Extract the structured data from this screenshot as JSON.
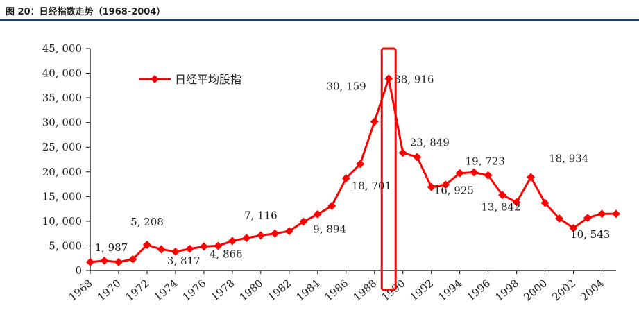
{
  "header": {
    "title": "图 20：日经指数走势（1968-2004）"
  },
  "chart_data": {
    "type": "line",
    "title": "图 20：日经指数走势（1968-2004）",
    "xlabel": "",
    "ylabel": "",
    "ylim": [
      0,
      45000
    ],
    "xlim": [
      1968,
      2005
    ],
    "colors": {
      "series": "#ff0000",
      "axis": "#000000",
      "highlight": "#ff0000"
    },
    "yticks": [
      0,
      5000,
      10000,
      15000,
      20000,
      25000,
      30000,
      35000,
      40000,
      45000
    ],
    "ytick_labels": [
      "0",
      "5, 000",
      "10, 000",
      "15, 000",
      "20, 000",
      "25, 000",
      "30, 000",
      "35, 000",
      "40, 000",
      "45, 000"
    ],
    "xticks": [
      1968,
      1970,
      1972,
      1974,
      1976,
      1978,
      1980,
      1982,
      1984,
      1986,
      1988,
      1990,
      1992,
      1994,
      1996,
      1998,
      2000,
      2002,
      2004
    ],
    "xtick_labels": [
      "1968",
      "1970",
      "1972",
      "1974",
      "1976",
      "1978",
      "1980",
      "1982",
      "1984",
      "1986",
      "1988",
      "1990",
      "1992",
      "1994",
      "1996",
      "1998",
      "2000",
      "2002",
      "2004"
    ],
    "legend": {
      "label": "日经平均股指",
      "position": "top-left"
    },
    "series": [
      {
        "name": "日经平均股指",
        "x": [
          1968,
          1969,
          1970,
          1971,
          1972,
          1973,
          1974,
          1975,
          1976,
          1977,
          1978,
          1979,
          1980,
          1981,
          1982,
          1983,
          1984,
          1985,
          1986,
          1987,
          1988,
          1989,
          1990,
          1991,
          1992,
          1993,
          1994,
          1995,
          1996,
          1997,
          1998,
          1999,
          2000,
          2001,
          2002,
          2003,
          2004,
          2005
        ],
        "values": [
          1700,
          1987,
          1700,
          2300,
          5208,
          4300,
          3817,
          4400,
          4866,
          5000,
          6000,
          6600,
          7116,
          7500,
          8000,
          9894,
          11400,
          13100,
          18701,
          21600,
          30159,
          38916,
          23849,
          23000,
          16925,
          17400,
          19723,
          19900,
          19300,
          15300,
          13842,
          18934,
          13700,
          10543,
          8600,
          10676,
          11500,
          11500
        ]
      }
    ],
    "data_labels": [
      {
        "x": 1969,
        "text": "1, 987"
      },
      {
        "x": 1972,
        "text": "5, 208"
      },
      {
        "x": 1974,
        "text": "3, 817"
      },
      {
        "x": 1976,
        "text": "4, 866"
      },
      {
        "x": 1980,
        "text": "7, 116"
      },
      {
        "x": 1983,
        "text": "9, 894"
      },
      {
        "x": 1988,
        "text": "30, 159"
      },
      {
        "x": 1986,
        "text": "18, 701"
      },
      {
        "x": 1989,
        "text": "38, 916"
      },
      {
        "x": 1990,
        "text": "23, 849"
      },
      {
        "x": 1992,
        "text": "16, 925"
      },
      {
        "x": 1994,
        "text": "19, 723"
      },
      {
        "x": 1998,
        "text": "13, 842"
      },
      {
        "x": 1999,
        "text": "18, 934"
      },
      {
        "x": 2001,
        "text": "10, 543"
      }
    ],
    "highlight": {
      "x": 1989,
      "note": "red box around the 1989 peak"
    }
  }
}
